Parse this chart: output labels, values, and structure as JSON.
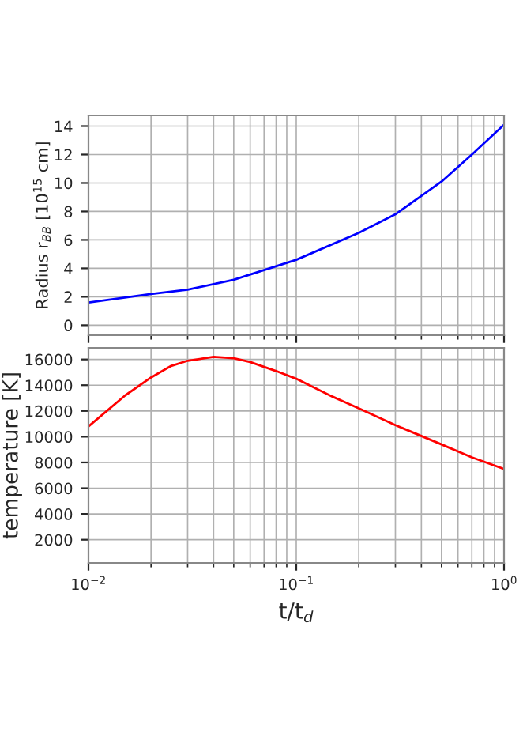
{
  "chart_data": [
    {
      "type": "line",
      "ylabel": "Radius r$_{BB}$ [10$^{15}$ cm]",
      "log": "x",
      "xlim": [
        0.01,
        1
      ],
      "ylim": [
        -0.7,
        14.75
      ],
      "yticks": [
        0,
        2,
        4,
        6,
        8,
        10,
        12,
        14
      ],
      "grid": true,
      "tick_labels": "y",
      "x": [
        0.01,
        0.02,
        0.03,
        0.05,
        0.1,
        0.2,
        0.3,
        0.5,
        0.7,
        1.0
      ],
      "series": [
        {
          "color": "#0000ff",
          "values": [
            1.6,
            2.2,
            2.5,
            3.2,
            4.6,
            6.5,
            7.8,
            10.1,
            12.0,
            14.1
          ]
        }
      ]
    },
    {
      "type": "line",
      "ylabel": "temperature [K]",
      "xlabel": "t/t$_{d}$",
      "log": "x",
      "xlim": [
        0.01,
        1
      ],
      "ylim": [
        200,
        16900
      ],
      "xticks": [
        {
          "value": 0.01,
          "label": "10$^{−2}$"
        },
        {
          "value": 0.1,
          "label": "10$^{−1}$"
        },
        {
          "value": 1,
          "label": "10$^{0}$"
        }
      ],
      "yticks": [
        2000,
        4000,
        6000,
        8000,
        10000,
        12000,
        14000,
        16000
      ],
      "grid": true,
      "x": [
        0.01,
        0.015,
        0.02,
        0.025,
        0.03,
        0.04,
        0.05,
        0.06,
        0.08,
        0.1,
        0.15,
        0.2,
        0.3,
        0.5,
        0.7,
        1.0
      ],
      "series": [
        {
          "color": "#ff0000",
          "values": [
            10800,
            13200,
            14600,
            15500,
            15900,
            16200,
            16100,
            15800,
            15100,
            14500,
            13100,
            12200,
            10900,
            9400,
            8400,
            7500
          ]
        }
      ]
    }
  ]
}
